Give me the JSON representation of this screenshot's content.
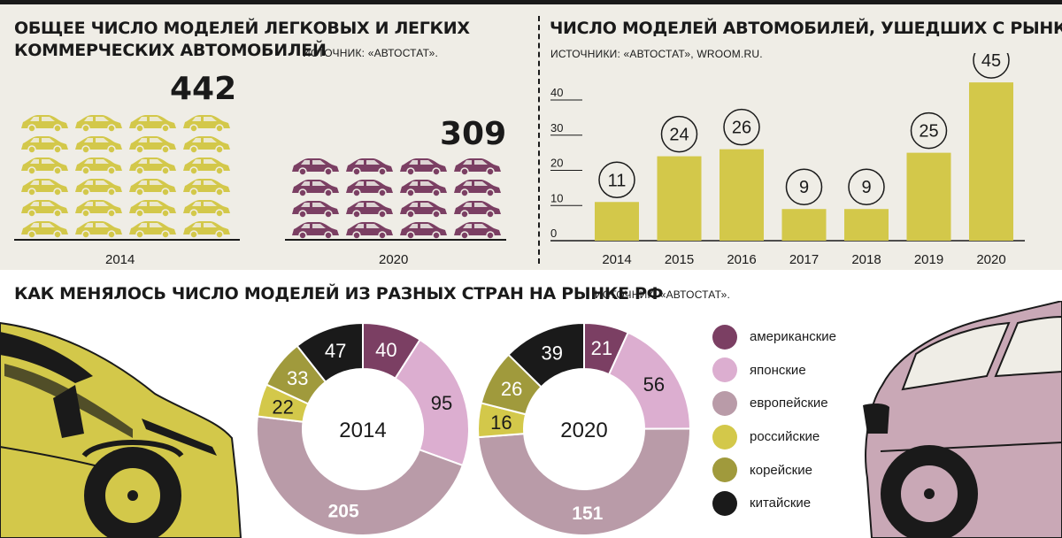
{
  "panels": {
    "models_total": {
      "title_line1": "Общее число моделей легковых и легких",
      "title_line2": "коммерческих автомобилей",
      "source": "Источник: «Автостат».",
      "items": [
        {
          "year": "2014",
          "value": "442",
          "color": "#d3c84a"
        },
        {
          "year": "2020",
          "value": "309",
          "color": "#7b3f63"
        }
      ]
    },
    "models_left": {
      "title": "Число моделей автомобилей, ушедших с рынка РФ",
      "source": "Источники: «Автостат», wroom.ru."
    },
    "countries": {
      "title": "Как менялось число моделей из разных стран на рынке РФ",
      "source": "Источник: «Автостат»."
    }
  },
  "chart_data": [
    {
      "type": "bar",
      "title": "Число моделей автомобилей, ушедших с рынка РФ",
      "categories": [
        "2014",
        "2015",
        "2016",
        "2017",
        "2018",
        "2019",
        "2020"
      ],
      "values": [
        11,
        24,
        26,
        9,
        9,
        25,
        45
      ],
      "yticks": [
        0,
        10,
        20,
        30,
        40
      ],
      "ylim": [
        0,
        47
      ],
      "bar_color": "#d3c84a",
      "data_labels": "circled"
    },
    {
      "type": "pie",
      "title": "2014",
      "center_label": "2014",
      "categories": [
        "американские",
        "японские",
        "европейские",
        "российские",
        "корейские",
        "китайские"
      ],
      "values": [
        40,
        95,
        205,
        22,
        33,
        47
      ]
    },
    {
      "type": "pie",
      "title": "2020",
      "center_label": "2020",
      "categories": [
        "американские",
        "японские",
        "европейские",
        "российские",
        "корейские",
        "китайские"
      ],
      "values": [
        21,
        56,
        151,
        16,
        26,
        39
      ]
    }
  ],
  "legend": {
    "items": [
      {
        "label": "американские",
        "color": "#7b3f63"
      },
      {
        "label": "японские",
        "color": "#dcaed0"
      },
      {
        "label": "европейские",
        "color": "#b99ba8"
      },
      {
        "label": "российские",
        "color": "#d3c84a"
      },
      {
        "label": "корейские",
        "color": "#a09a3c"
      },
      {
        "label": "китайские",
        "color": "#1a1a1a"
      }
    ]
  }
}
